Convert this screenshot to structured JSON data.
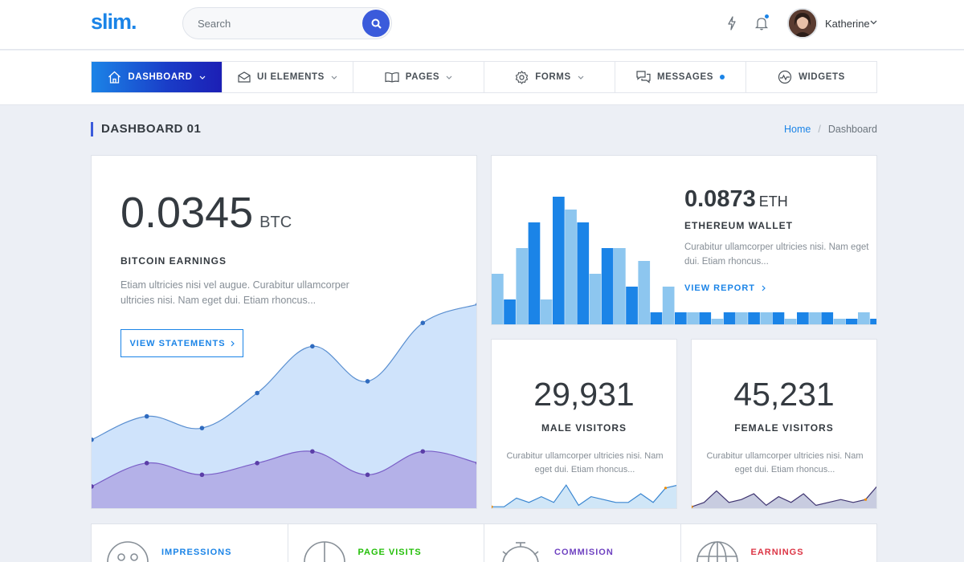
{
  "header": {
    "logo": "slim.",
    "search_placeholder": "Search",
    "user_name": "Katherine"
  },
  "nav": {
    "items": [
      {
        "label": "DASHBOARD",
        "icon": "home-icon"
      },
      {
        "label": "UI ELEMENTS",
        "icon": "envelope-open-icon"
      },
      {
        "label": "PAGES",
        "icon": "book-open-icon"
      },
      {
        "label": "FORMS",
        "icon": "gear-icon"
      },
      {
        "label": "MESSAGES",
        "icon": "chat-bubbles-icon"
      },
      {
        "label": "WIDGETS",
        "icon": "pulse-circle-icon"
      }
    ]
  },
  "page": {
    "title": "DASHBOARD 01",
    "breadcrumb": [
      "Home",
      "Dashboard"
    ]
  },
  "btc": {
    "value": "0.0345",
    "unit": "BTC",
    "label": "BITCOIN EARNINGS",
    "desc": "Etiam ultricies nisi vel augue. Curabitur ullamcorper ultricies nisi. Nam eget dui. Etiam rhoncus...",
    "button": "VIEW STATEMENTS"
  },
  "eth": {
    "value": "0.0873",
    "unit": "ETH",
    "label": "ETHEREUM WALLET",
    "desc": "Curabitur ullamcorper ultricies nisi. Nam eget dui. Etiam rhoncus...",
    "link": "VIEW REPORT"
  },
  "male": {
    "value": "29,931",
    "label": "MALE VISITORS",
    "desc": "Curabitur ullamcorper ultricies nisi. Nam eget dui. Etiam rhoncus..."
  },
  "female": {
    "value": "45,231",
    "label": "FEMALE VISITORS",
    "desc": "Curabitur ullamcorper ultricies nisi. Nam eget dui. Etiam rhoncus..."
  },
  "stats": [
    {
      "label": "IMPRESSIONS",
      "color": "#1b84e7",
      "icon": "chart-face-icon"
    },
    {
      "label": "PAGE VISITS",
      "color": "#23bf08",
      "icon": "pie-chart-icon"
    },
    {
      "label": "COMMISION",
      "color": "#6f42c1",
      "icon": "stopwatch-icon"
    },
    {
      "label": "EARNINGS",
      "color": "#dc3545",
      "icon": "globe-icon"
    }
  ],
  "colors": {
    "accent": "#1b84e7",
    "nav_gradient_end": "#1c1fb5",
    "area_light": "#cfe3fb",
    "area_purple": "#b4b1e8"
  },
  "chart_data": [
    {
      "type": "area",
      "series": [
        {
          "values": [
            30,
            40,
            35,
            50,
            70,
            55,
            80,
            88
          ]
        },
        {
          "values": [
            10,
            20,
            15,
            20,
            25,
            15,
            25,
            20
          ]
        }
      ],
      "ylim": [
        0,
        100
      ]
    },
    {
      "type": "bar",
      "series": [
        {
          "values": [
            40,
            60,
            20,
            90,
            40,
            60,
            50,
            30,
            10,
            5,
            10,
            10,
            5,
            10,
            5,
            10,
            10,
            10,
            5,
            10
          ]
        },
        {
          "values": [
            20,
            80,
            100,
            80,
            60,
            30,
            10,
            10,
            10,
            10,
            10,
            10,
            10,
            10,
            5,
            5,
            10,
            5,
            10
          ]
        }
      ],
      "ylim": [
        0,
        100
      ]
    },
    {
      "type": "area",
      "series": [
        {
          "values": [
            5,
            5,
            35,
            20,
            40,
            20,
            80,
            10,
            40,
            30,
            20,
            20,
            50,
            20,
            70,
            80
          ]
        }
      ],
      "ylim": [
        0,
        100
      ]
    },
    {
      "type": "area",
      "series": [
        {
          "values": [
            5,
            20,
            60,
            20,
            30,
            50,
            10,
            40,
            20,
            50,
            10,
            20,
            30,
            20,
            30,
            80
          ]
        }
      ],
      "ylim": [
        0,
        100
      ]
    }
  ]
}
